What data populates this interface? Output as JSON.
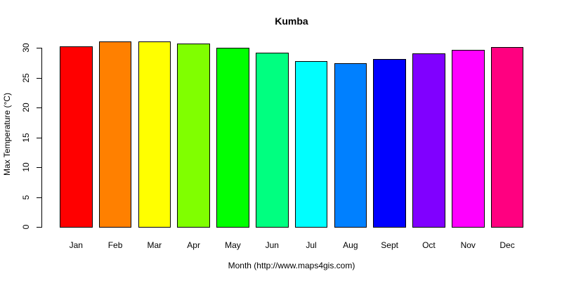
{
  "chart_data": {
    "type": "bar",
    "title": "Kumba",
    "xlabel": "Month (http://www.maps4gis.com)",
    "ylabel": "Max Temperature (°C)",
    "categories": [
      "Jan",
      "Feb",
      "Mar",
      "Apr",
      "May",
      "Jun",
      "Jul",
      "Aug",
      "Sept",
      "Oct",
      "Nov",
      "Dec"
    ],
    "values": [
      30.3,
      31.1,
      31.1,
      30.7,
      30.0,
      29.2,
      27.8,
      27.4,
      28.1,
      29.1,
      29.7,
      30.1
    ],
    "colors": [
      "#FF0000",
      "#FF8000",
      "#FFFF00",
      "#80FF00",
      "#00FF00",
      "#00FF80",
      "#00FFFF",
      "#0080FF",
      "#0000FF",
      "#8000FF",
      "#FF00FF",
      "#FF0080"
    ],
    "yticks": [
      0,
      5,
      10,
      15,
      20,
      25,
      30
    ],
    "ylim": [
      0,
      31.5
    ],
    "grid": false,
    "legend": null
  }
}
